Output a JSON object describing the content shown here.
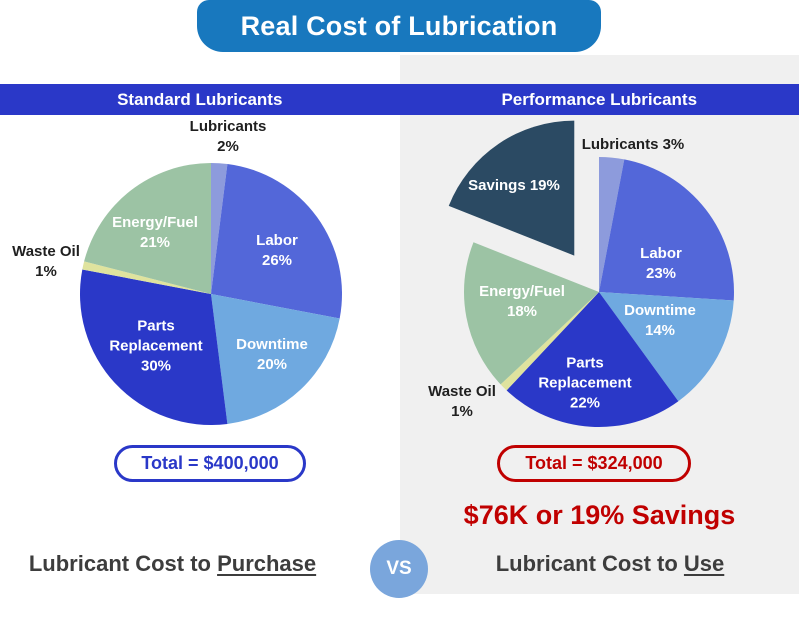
{
  "title": "Real Cost of Lubrication",
  "sections": {
    "left": "Standard Lubricants",
    "right": "Performance Lubricants"
  },
  "colors": {
    "banner_blue": "#1878be",
    "section_bar_blue": "#2a38c8",
    "panel_gray": "#f0f0f0",
    "total_left_blue": "#2a38c8",
    "total_right_red": "#c00000",
    "savings_text_red": "#c00000",
    "vs_circle_blue": "#7aa6dc",
    "footer_text": "#3d3d3d"
  },
  "chart_data": [
    {
      "type": "pie",
      "title": "Standard Lubricants",
      "start_angle_deg": 0,
      "direction": "clockwise",
      "total_label": "Total = $400,000",
      "slices": [
        {
          "label": "Lubricants",
          "pct": 2,
          "color": "#8d9bdc",
          "text_color": "#1f1f1f",
          "inside": false,
          "exploded": false,
          "lines": [
            "Lubricants",
            "2%"
          ]
        },
        {
          "label": "Labor",
          "pct": 26,
          "color": "#5367d9",
          "text_color": "#ffffff",
          "inside": true,
          "exploded": false,
          "lines": [
            "Labor",
            "26%"
          ]
        },
        {
          "label": "Downtime",
          "pct": 20,
          "color": "#6fa9e0",
          "text_color": "#ffffff",
          "inside": true,
          "exploded": false,
          "lines": [
            "Downtime",
            "20%"
          ]
        },
        {
          "label": "Parts Replacement",
          "pct": 30,
          "color": "#2a38c8",
          "text_color": "#ffffff",
          "inside": true,
          "exploded": false,
          "lines": [
            "Parts",
            "Replacement",
            "30%"
          ]
        },
        {
          "label": "Waste Oil",
          "pct": 1,
          "color": "#dfe39e",
          "text_color": "#1f1f1f",
          "inside": false,
          "exploded": false,
          "lines": [
            "Waste Oil",
            "1%"
          ]
        },
        {
          "label": "Energy/Fuel",
          "pct": 21,
          "color": "#9cc3a4",
          "text_color": "#ffffff",
          "inside": true,
          "exploded": false,
          "lines": [
            "Energy/Fuel",
            "21%"
          ]
        }
      ]
    },
    {
      "type": "pie",
      "title": "Performance Lubricants",
      "start_angle_deg": 0,
      "direction": "clockwise",
      "total_label": "Total = $324,000",
      "savings_note": "$76K or 19% Savings",
      "slices": [
        {
          "label": "Lubricants",
          "pct": 3,
          "color": "#8d9bdc",
          "text_color": "#1f1f1f",
          "inside": false,
          "exploded": false,
          "lines": [
            "Lubricants 3%"
          ]
        },
        {
          "label": "Labor",
          "pct": 23,
          "color": "#5367d9",
          "text_color": "#ffffff",
          "inside": true,
          "exploded": false,
          "lines": [
            "Labor",
            "23%"
          ]
        },
        {
          "label": "Downtime",
          "pct": 14,
          "color": "#6fa9e0",
          "text_color": "#ffffff",
          "inside": true,
          "exploded": false,
          "lines": [
            "Downtime",
            "14%"
          ]
        },
        {
          "label": "Parts Replacement",
          "pct": 22,
          "color": "#2a38c8",
          "text_color": "#ffffff",
          "inside": true,
          "exploded": false,
          "lines": [
            "Parts",
            "Replacement",
            "22%"
          ]
        },
        {
          "label": "Waste Oil",
          "pct": 1,
          "color": "#dfe39e",
          "text_color": "#1f1f1f",
          "inside": false,
          "exploded": false,
          "lines": [
            "Waste Oil",
            "1%"
          ]
        },
        {
          "label": "Energy/Fuel",
          "pct": 18,
          "color": "#9cc3a4",
          "text_color": "#ffffff",
          "inside": true,
          "exploded": false,
          "lines": [
            "Energy/Fuel",
            "18%"
          ]
        },
        {
          "label": "Savings",
          "pct": 19,
          "color": "#2b4a63",
          "text_color": "#ffffff",
          "inside": true,
          "exploded": true,
          "lines": [
            "Savings 19%"
          ]
        }
      ]
    }
  ],
  "footer": {
    "left_prefix": "Lubricant Cost to ",
    "left_underlined": "Purchase",
    "vs": "VS",
    "right_prefix": "Lubricant Cost to ",
    "right_underlined": "Use"
  }
}
